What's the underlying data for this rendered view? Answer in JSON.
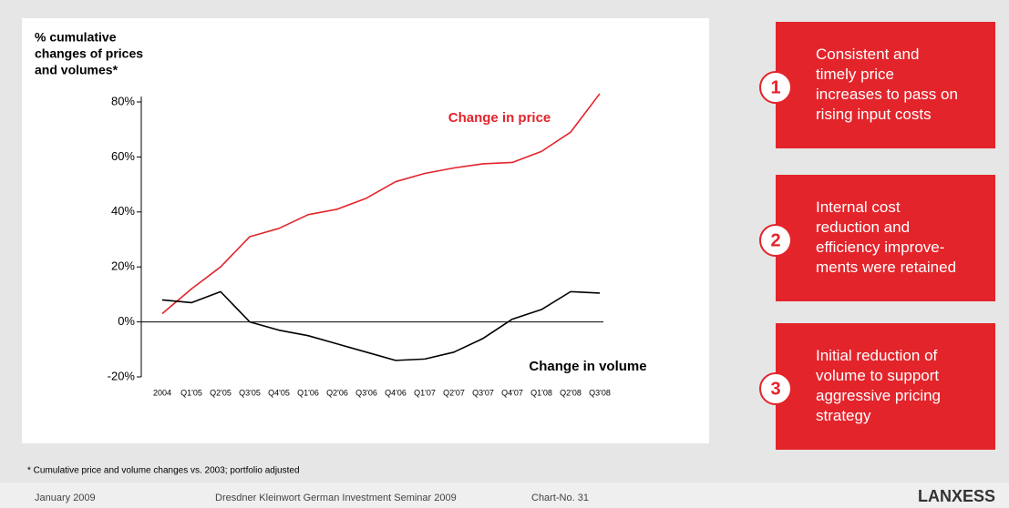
{
  "chart_data": {
    "type": "line",
    "y_axis_title": [
      "% cumulative",
      "changes of prices",
      "and volumes*"
    ],
    "categories": [
      "2004",
      "Q1'05",
      "Q2'05",
      "Q3'05",
      "Q4'05",
      "Q1'06",
      "Q2'06",
      "Q3'06",
      "Q4'06",
      "Q1'07",
      "Q2'07",
      "Q3'07",
      "Q4'07",
      "Q1'08",
      "Q2'08",
      "Q3'08"
    ],
    "series": [
      {
        "name": "Change in price",
        "color": "#e3242b",
        "values": [
          3,
          12,
          20,
          31,
          34,
          39,
          41,
          45,
          51,
          54,
          56,
          57.5,
          58,
          62,
          69,
          83
        ]
      },
      {
        "name": "Change in volume",
        "color": "#000000",
        "values": [
          8,
          7,
          11,
          0,
          -3,
          -5,
          -8,
          -11,
          -14,
          -13.5,
          -11,
          -6,
          1,
          4.5,
          11,
          10.5
        ]
      }
    ],
    "ylim": [
      -20,
      80
    ],
    "yticks": [
      {
        "value": -20,
        "label": "-20%"
      },
      {
        "value": 0,
        "label": "0%"
      },
      {
        "value": 20,
        "label": "20%"
      },
      {
        "value": 40,
        "label": "40%"
      },
      {
        "value": 60,
        "label": "60%"
      },
      {
        "value": 80,
        "label": "80%"
      }
    ]
  },
  "boxes": [
    {
      "number": "1",
      "lines": [
        "Consistent and",
        "timely price",
        "increases to pass on",
        "rising input costs"
      ]
    },
    {
      "number": "2",
      "lines": [
        "Internal cost",
        "reduction and",
        "efficiency improve-",
        "ments were retained"
      ]
    },
    {
      "number": "3",
      "lines": [
        "Initial reduction of",
        "volume to support",
        "aggressive pricing",
        "strategy"
      ]
    }
  ],
  "footnote": "* Cumulative price and volume changes vs. 2003; portfolio adjusted",
  "footer": {
    "date": "January 2009",
    "event": "Dresdner Kleinwort German Investment Seminar 2009",
    "chart_no": "Chart-No. 31",
    "logo": "LANXESS"
  }
}
